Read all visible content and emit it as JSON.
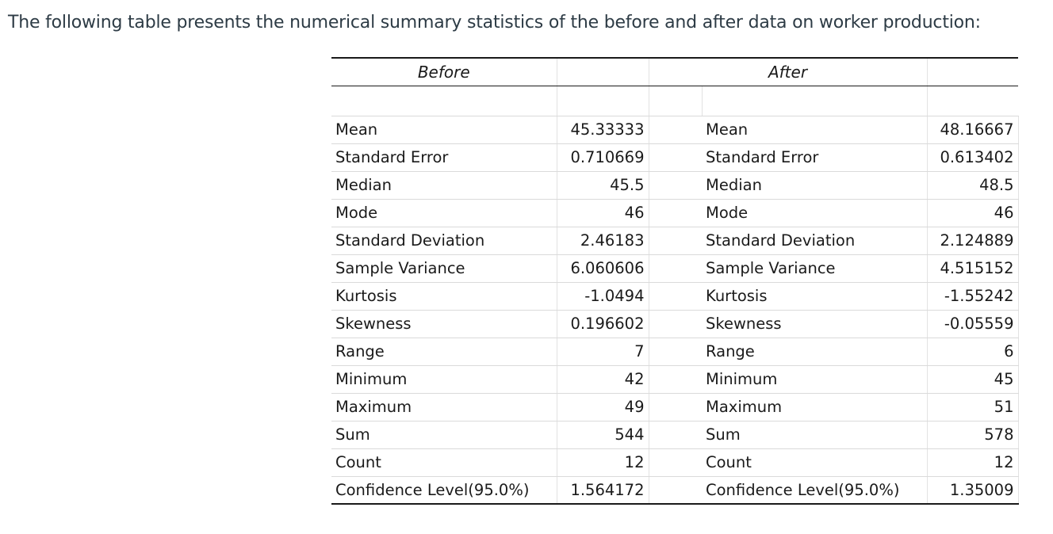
{
  "intro_text": "The following table presents the numerical summary statistics of the before and after data on worker production:",
  "table": {
    "before_header": "Before",
    "after_header": "After",
    "rows": [
      {
        "before_label": "Mean",
        "before_value": "45.33333",
        "after_label": "Mean",
        "after_value": "48.16667"
      },
      {
        "before_label": "Standard Error",
        "before_value": "0.710669",
        "after_label": "Standard Error",
        "after_value": "0.613402"
      },
      {
        "before_label": "Median",
        "before_value": "45.5",
        "after_label": "Median",
        "after_value": "48.5"
      },
      {
        "before_label": "Mode",
        "before_value": "46",
        "after_label": "Mode",
        "after_value": "46"
      },
      {
        "before_label": "Standard Deviation",
        "before_value": "2.46183",
        "after_label": "Standard Deviation",
        "after_value": "2.124889"
      },
      {
        "before_label": "Sample Variance",
        "before_value": "6.060606",
        "after_label": "Sample Variance",
        "after_value": "4.515152"
      },
      {
        "before_label": "Kurtosis",
        "before_value": "-1.0494",
        "after_label": "Kurtosis",
        "after_value": "-1.55242"
      },
      {
        "before_label": "Skewness",
        "before_value": "0.196602",
        "after_label": "Skewness",
        "after_value": "-0.05559"
      },
      {
        "before_label": "Range",
        "before_value": "7",
        "after_label": "Range",
        "after_value": "6"
      },
      {
        "before_label": "Minimum",
        "before_value": "42",
        "after_label": "Minimum",
        "after_value": "45"
      },
      {
        "before_label": "Maximum",
        "before_value": "49",
        "after_label": "Maximum",
        "after_value": "51"
      },
      {
        "before_label": "Sum",
        "before_value": "544",
        "after_label": "Sum",
        "after_value": "578"
      },
      {
        "before_label": "Count",
        "before_value": "12",
        "after_label": "Count",
        "after_value": "12"
      },
      {
        "before_label": "Confidence Level(95.0%)",
        "before_value": "1.564172",
        "after_label": "Confidence Level(95.0%)",
        "after_value": "1.35009"
      }
    ]
  }
}
